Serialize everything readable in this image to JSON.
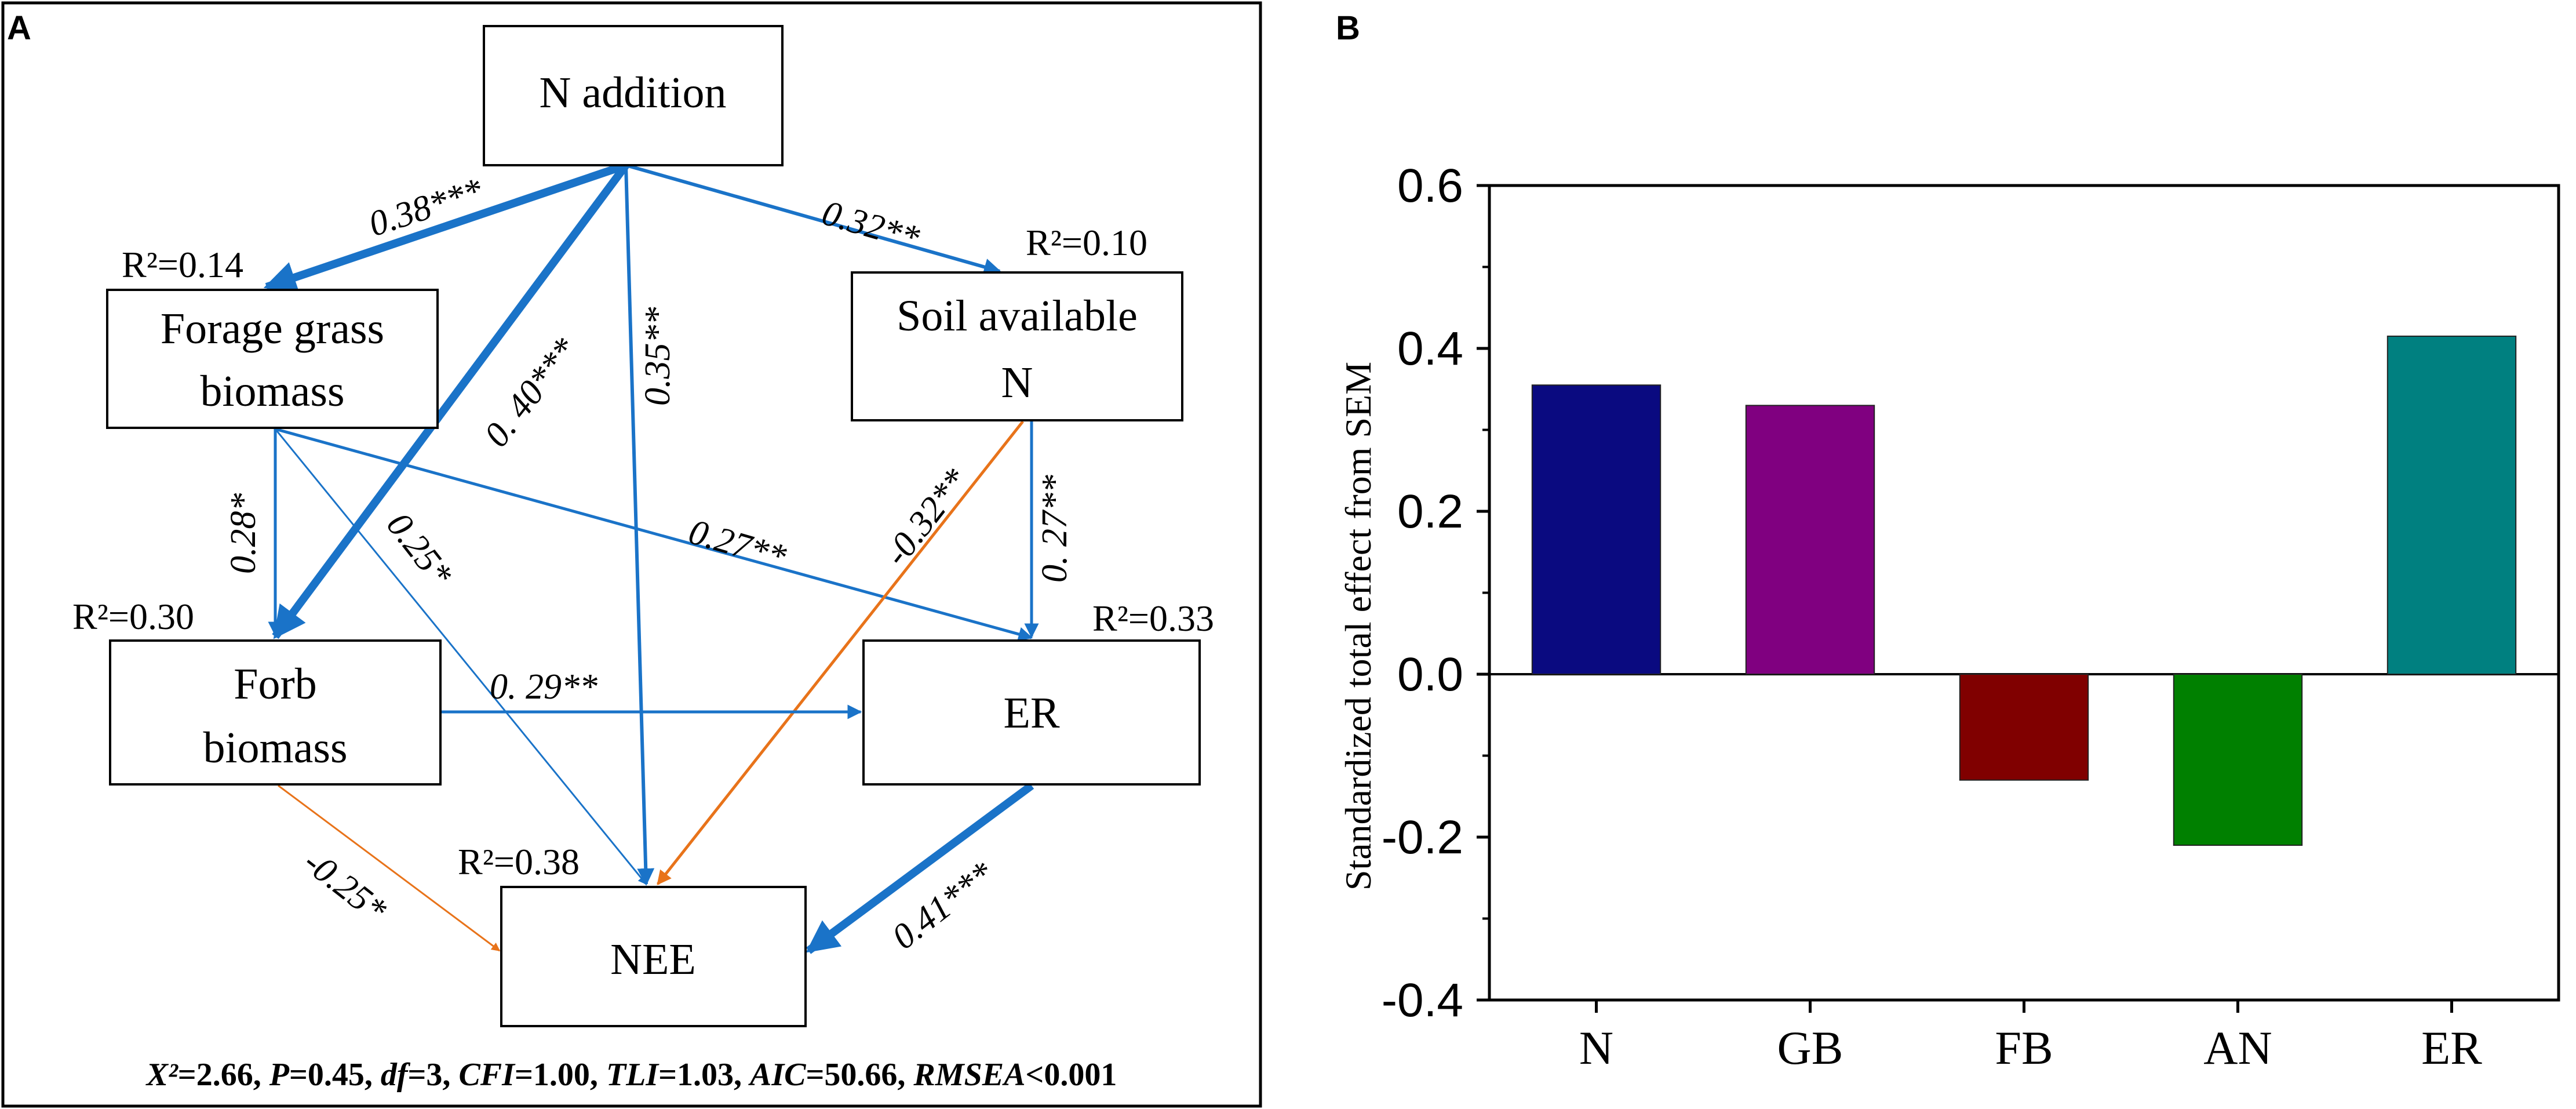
{
  "panel_a": {
    "label": "A",
    "nodes": {
      "n_addition": "N addition",
      "forage_l1": "Forage grass",
      "forage_l2": "biomass",
      "soil_l1": "Soil available",
      "soil_l2": "N",
      "forb_l1": "Forb",
      "forb_l2": "biomass",
      "er": "ER",
      "nee": "NEE"
    },
    "r2": {
      "forage": "R²=0.14",
      "soil": "R²=0.10",
      "forb": "R²=0.30",
      "er": "R²=0.33",
      "nee": "R²=0.38"
    },
    "paths": [
      {
        "from": "N addition",
        "to": "Forage grass biomass",
        "label": "0.38***",
        "color": "#1a73c8"
      },
      {
        "from": "N addition",
        "to": "Soil available N",
        "label": "0.32**",
        "color": "#1a73c8"
      },
      {
        "from": "N addition",
        "to": "Forb biomass",
        "label": "0. 40***",
        "color": "#1a73c8"
      },
      {
        "from": "N addition",
        "to": "NEE",
        "label": "0.35**",
        "color": "#1a73c8"
      },
      {
        "from": "Forage grass biomass",
        "to": "Forb biomass",
        "label": "0.28*",
        "color": "#1a73c8"
      },
      {
        "from": "Forage grass biomass",
        "to": "NEE",
        "label": "0.25*",
        "color": "#1a73c8"
      },
      {
        "from": "Forage grass biomass",
        "to": "ER",
        "label": "0.27**",
        "color": "#1a73c8"
      },
      {
        "from": "Soil available N",
        "to": "ER",
        "label": "0. 27**",
        "color": "#1a73c8"
      },
      {
        "from": "Soil available N",
        "to": "NEE",
        "label": "-0.32**",
        "color": "#e8731a"
      },
      {
        "from": "Forb biomass",
        "to": "ER",
        "label": "0. 29**",
        "color": "#1a73c8"
      },
      {
        "from": "Forb biomass",
        "to": "NEE",
        "label": "-0.25*",
        "color": "#e8731a"
      },
      {
        "from": "ER",
        "to": "NEE",
        "label": "0.41***",
        "color": "#1a73c8"
      }
    ],
    "fit": {
      "chi_sym": "X²",
      "chi_val": "=2.66, ",
      "p_sym": "P",
      "p_val": "=0.45, ",
      "df_sym": "df",
      "df_val": "=3, ",
      "cfi_sym": "CFI",
      "cfi_val": "=1.00, ",
      "tli_sym": "TLI",
      "tli_val": "=1.03, ",
      "aic_sym": "AIC",
      "aic_val": "=50.66, ",
      "rmsea_sym": "RMSEA",
      "rmsea_val": "<0.001"
    }
  },
  "chart_data": {
    "type": "bar",
    "panel_label": "B",
    "categories": [
      "N",
      "GB",
      "FB",
      "AN",
      "ER"
    ],
    "values": [
      0.355,
      0.33,
      -0.13,
      -0.21,
      0.415
    ],
    "colors": [
      "#0a0a80",
      "#800080",
      "#800000",
      "#008000",
      "#008080"
    ],
    "ylabel": "Standardized total effect from SEM",
    "ylim": [
      -0.4,
      0.6
    ],
    "yticks": [
      "0.6",
      "0.4",
      "0.2",
      "0.0",
      "-0.2",
      "-0.4"
    ],
    "ytick_values": [
      0.6,
      0.4,
      0.2,
      0.0,
      -0.2,
      -0.4
    ],
    "xlabel": "",
    "zero_line": true
  }
}
